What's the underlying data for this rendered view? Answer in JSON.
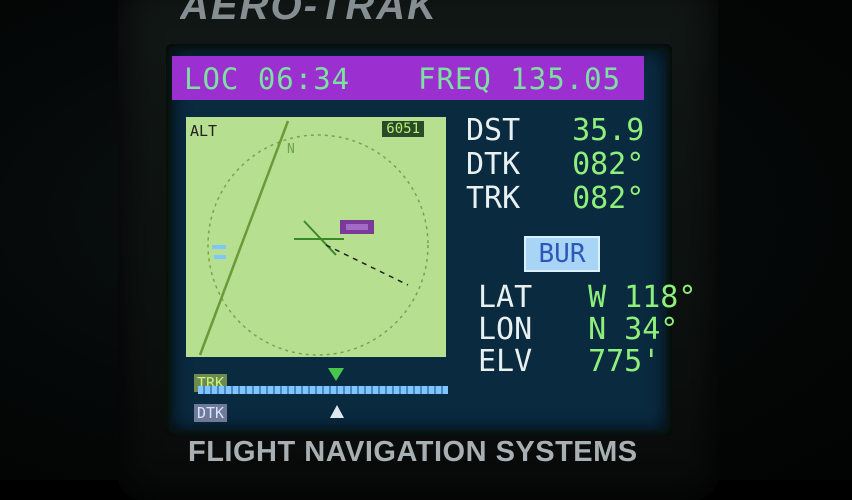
{
  "device": {
    "brand": "AERO-TRAK",
    "footer": "FLIGHT NAVIGATION SYSTEMS"
  },
  "status_bar": {
    "loc": "LOC 06:34",
    "freq": "FREQ 135.05"
  },
  "map": {
    "alt_label": "ALT",
    "alt_value": "6051",
    "north_label": "N"
  },
  "nav": {
    "dst_label": "DST",
    "dst_value": "35.9",
    "dtk_label": "DTK",
    "dtk_value": "082°",
    "trk_label": "TRK",
    "trk_value": "082°"
  },
  "waypoint": {
    "id": "BUR"
  },
  "position": {
    "lat_label": "LAT",
    "lat_value": "W 118°",
    "lon_label": "LON",
    "lon_value": "N 34°",
    "elv_label": "ELV",
    "elv_value": "775'"
  },
  "course_indicator": {
    "trk_label": "TRK",
    "dtk_label": "DTK"
  },
  "colors": {
    "status_bar_bg": "#9b2fd0",
    "map_bg": "#b6df90",
    "screen_bg": "#0a2a40",
    "value_green": "#8ef07a",
    "waypoint_box": "#a8d4f5"
  }
}
